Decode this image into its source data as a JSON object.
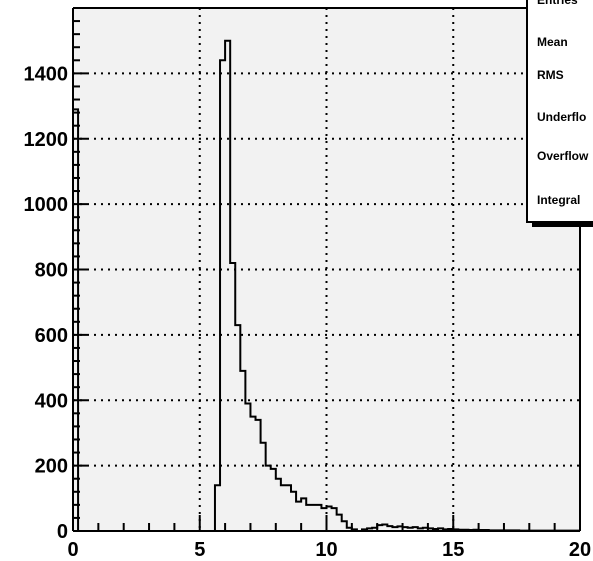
{
  "chart_data": {
    "type": "histogram",
    "title": "",
    "xlabel": "",
    "ylabel": "",
    "xlim": [
      0,
      20
    ],
    "ylim": [
      0,
      1600
    ],
    "grid": true,
    "x_ticks": [
      "0",
      "5",
      "10",
      "15",
      "20"
    ],
    "y_ticks": [
      "0",
      "200",
      "400",
      "600",
      "800",
      "1000",
      "1200",
      "1400"
    ],
    "bin_width": 0.2,
    "bins": [
      [
        0.0,
        1290
      ],
      [
        0.2,
        0
      ],
      [
        0.4,
        0
      ],
      [
        0.6,
        0
      ],
      [
        0.8,
        0
      ],
      [
        1.0,
        0
      ],
      [
        1.2,
        0
      ],
      [
        1.4,
        0
      ],
      [
        1.6,
        0
      ],
      [
        1.8,
        0
      ],
      [
        2.0,
        0
      ],
      [
        2.2,
        0
      ],
      [
        2.4,
        0
      ],
      [
        2.6,
        0
      ],
      [
        2.8,
        0
      ],
      [
        3.0,
        0
      ],
      [
        3.2,
        0
      ],
      [
        3.4,
        0
      ],
      [
        3.6,
        0
      ],
      [
        3.8,
        0
      ],
      [
        4.0,
        0
      ],
      [
        4.2,
        0
      ],
      [
        4.4,
        0
      ],
      [
        4.6,
        0
      ],
      [
        4.8,
        0
      ],
      [
        5.0,
        0
      ],
      [
        5.2,
        0
      ],
      [
        5.4,
        0
      ],
      [
        5.6,
        140
      ],
      [
        5.8,
        1440
      ],
      [
        6.0,
        1500
      ],
      [
        6.2,
        820
      ],
      [
        6.4,
        630
      ],
      [
        6.6,
        490
      ],
      [
        6.8,
        390
      ],
      [
        7.0,
        350
      ],
      [
        7.2,
        340
      ],
      [
        7.4,
        270
      ],
      [
        7.6,
        200
      ],
      [
        7.8,
        190
      ],
      [
        8.0,
        160
      ],
      [
        8.2,
        140
      ],
      [
        8.4,
        140
      ],
      [
        8.6,
        120
      ],
      [
        8.8,
        90
      ],
      [
        9.0,
        100
      ],
      [
        9.2,
        80
      ],
      [
        9.4,
        80
      ],
      [
        9.6,
        80
      ],
      [
        9.8,
        70
      ],
      [
        10.0,
        75
      ],
      [
        10.2,
        70
      ],
      [
        10.4,
        50
      ],
      [
        10.6,
        30
      ],
      [
        10.8,
        10
      ],
      [
        11.0,
        5
      ],
      [
        11.2,
        0
      ],
      [
        11.4,
        5
      ],
      [
        11.6,
        8
      ],
      [
        11.8,
        10
      ],
      [
        12.0,
        18
      ],
      [
        12.2,
        20
      ],
      [
        12.4,
        15
      ],
      [
        12.6,
        12
      ],
      [
        12.8,
        14
      ],
      [
        13.0,
        12
      ],
      [
        13.2,
        10
      ],
      [
        13.4,
        12
      ],
      [
        13.6,
        8
      ],
      [
        13.8,
        10
      ],
      [
        14.0,
        8
      ],
      [
        14.2,
        6
      ],
      [
        14.4,
        8
      ],
      [
        14.6,
        5
      ],
      [
        14.8,
        6
      ],
      [
        15.0,
        5
      ],
      [
        15.2,
        4
      ],
      [
        15.4,
        4
      ],
      [
        15.6,
        3
      ],
      [
        15.8,
        4
      ],
      [
        16.0,
        3
      ],
      [
        16.2,
        3
      ],
      [
        16.4,
        2
      ],
      [
        16.6,
        2
      ],
      [
        16.8,
        2
      ],
      [
        17.0,
        2
      ],
      [
        17.2,
        2
      ],
      [
        17.4,
        2
      ],
      [
        17.6,
        1
      ],
      [
        17.8,
        1
      ],
      [
        18.0,
        1
      ],
      [
        18.2,
        1
      ],
      [
        18.4,
        1
      ],
      [
        18.6,
        1
      ],
      [
        18.8,
        1
      ],
      [
        19.0,
        1
      ],
      [
        19.2,
        1
      ],
      [
        19.4,
        1
      ],
      [
        19.6,
        1
      ],
      [
        19.8,
        1
      ]
    ],
    "stats_box": {
      "labels": [
        "Entries",
        "Mean",
        "RMS",
        "Underflo",
        "Overflow",
        "Integral"
      ]
    },
    "colors": {
      "frame_fill": "#f2f2f2",
      "line": "#000000",
      "background": "#ffffff"
    }
  }
}
